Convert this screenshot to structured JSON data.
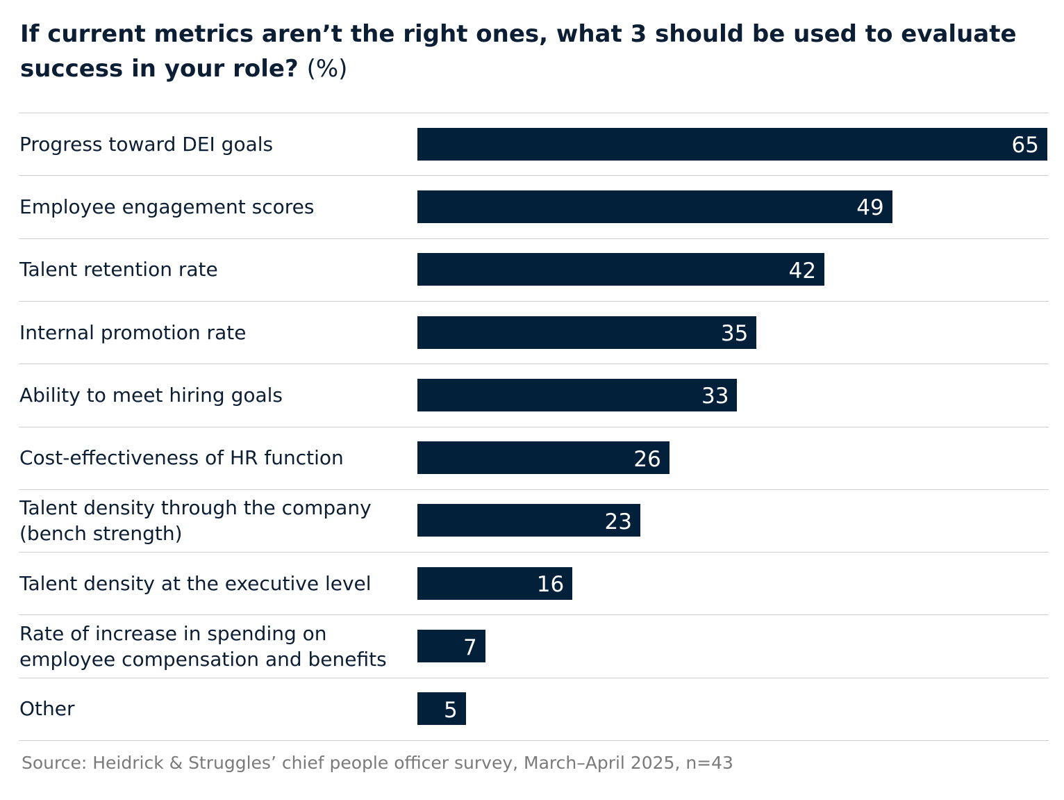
{
  "chart_data": {
    "type": "bar",
    "orientation": "horizontal",
    "title": "If current metrics aren’t the right ones, what 3 should be used to evaluate success in your role?",
    "title_unit": "(%)",
    "categories": [
      "Progress toward DEI goals",
      "Employee engagement scores",
      "Talent retention rate",
      "Internal promotion rate",
      "Ability to meet hiring goals",
      "Cost-effectiveness of HR function",
      "Talent density through the company (bench strength)",
      "Talent density at the executive level",
      "Rate of increase in spending on employee compensation and benefits",
      "Other"
    ],
    "values": [
      65,
      49,
      42,
      35,
      33,
      26,
      23,
      16,
      7,
      5
    ],
    "color": "#02203a",
    "source": "Source: Heidrick & Struggles’ chief people officer survey, March–April 2025, n=43"
  }
}
